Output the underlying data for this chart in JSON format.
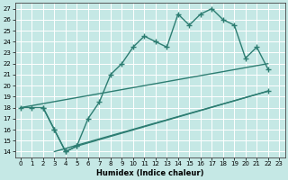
{
  "line1_x": [
    2,
    3,
    4,
    5,
    6,
    7,
    8,
    9,
    10,
    11,
    12,
    13,
    14,
    15,
    16,
    17,
    18,
    19,
    20,
    21,
    22
  ],
  "line1_y": [
    18,
    16,
    14,
    14.5,
    17,
    18.5,
    21,
    22,
    23.5,
    24.5,
    24,
    23.5,
    26.5,
    25.5,
    26.5,
    27,
    26,
    25.5,
    22.5,
    23.5,
    21.5
  ],
  "line2_x": [
    0,
    1,
    2,
    3,
    4,
    5,
    22
  ],
  "line2_y": [
    18,
    18,
    18,
    16,
    14,
    14.5,
    19.5
  ],
  "line3_x": [
    0,
    22
  ],
  "line3_y": [
    18,
    22
  ],
  "line4_x": [
    3,
    22
  ],
  "line4_y": [
    14,
    19.5
  ],
  "color": "#2d7d72",
  "bg_color": "#c5e8e5",
  "grid_color": "#b0d8d5",
  "xlabel": "Humidex (Indice chaleur)",
  "xlim": [
    -0.5,
    23.5
  ],
  "ylim": [
    13.5,
    27.5
  ],
  "yticks": [
    14,
    15,
    16,
    17,
    18,
    19,
    20,
    21,
    22,
    23,
    24,
    25,
    26,
    27
  ],
  "xticks": [
    0,
    1,
    2,
    3,
    4,
    5,
    6,
    7,
    8,
    9,
    10,
    11,
    12,
    13,
    14,
    15,
    16,
    17,
    18,
    19,
    20,
    21,
    22,
    23
  ],
  "marker": "+",
  "markersize": 4,
  "linewidth": 1.0,
  "tick_fontsize": 5.0,
  "xlabel_fontsize": 6.0
}
